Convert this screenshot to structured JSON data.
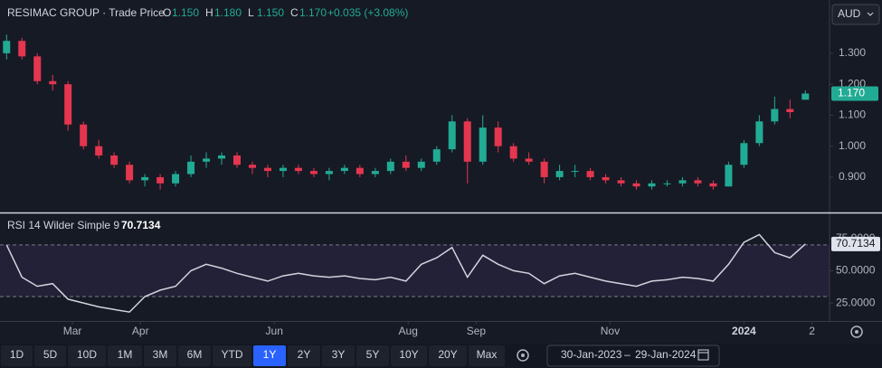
{
  "header": {
    "name": "RESIMAC GROUP · Trade Price",
    "ohlc": [
      {
        "key": "O",
        "value": "1.150"
      },
      {
        "key": "H",
        "value": "1.180"
      },
      {
        "key": "L",
        "value": "1.150"
      },
      {
        "key": "C",
        "value": "1.170"
      }
    ],
    "change": "+0.035 (+3.08%)",
    "currency": "AUD"
  },
  "chart_data": [
    {
      "type": "candlestick",
      "up_color": "#22ab94",
      "down_color": "#e5364f",
      "x": [
        0,
        7,
        14,
        21,
        28,
        35,
        42,
        49,
        56,
        63,
        70,
        77,
        84,
        91,
        98,
        105,
        112,
        119,
        126,
        133,
        140,
        147,
        154,
        161,
        168,
        175,
        182,
        189,
        196,
        203,
        210,
        217,
        224,
        231,
        238,
        245,
        252,
        259,
        266,
        273,
        280,
        287,
        294,
        301,
        308,
        315,
        322,
        329,
        336,
        343,
        350,
        357,
        364
      ],
      "ohlc": [
        [
          1.3,
          1.36,
          1.28,
          1.34
        ],
        [
          1.34,
          1.35,
          1.28,
          1.29
        ],
        [
          1.29,
          1.3,
          1.2,
          1.21
        ],
        [
          1.21,
          1.23,
          1.18,
          1.2
        ],
        [
          1.2,
          1.21,
          1.05,
          1.07
        ],
        [
          1.07,
          1.08,
          0.99,
          1.0
        ],
        [
          1.0,
          1.02,
          0.96,
          0.97
        ],
        [
          0.97,
          0.98,
          0.93,
          0.94
        ],
        [
          0.94,
          0.95,
          0.88,
          0.89
        ],
        [
          0.89,
          0.91,
          0.87,
          0.9
        ],
        [
          0.9,
          0.91,
          0.86,
          0.88
        ],
        [
          0.88,
          0.92,
          0.87,
          0.91
        ],
        [
          0.91,
          0.97,
          0.9,
          0.95
        ],
        [
          0.95,
          0.98,
          0.93,
          0.96
        ],
        [
          0.96,
          0.98,
          0.94,
          0.97
        ],
        [
          0.97,
          0.98,
          0.93,
          0.94
        ],
        [
          0.94,
          0.95,
          0.91,
          0.93
        ],
        [
          0.93,
          0.94,
          0.9,
          0.92
        ],
        [
          0.92,
          0.94,
          0.9,
          0.93
        ],
        [
          0.93,
          0.94,
          0.91,
          0.92
        ],
        [
          0.92,
          0.93,
          0.9,
          0.91
        ],
        [
          0.91,
          0.93,
          0.89,
          0.92
        ],
        [
          0.92,
          0.94,
          0.91,
          0.93
        ],
        [
          0.93,
          0.94,
          0.9,
          0.91
        ],
        [
          0.91,
          0.93,
          0.9,
          0.92
        ],
        [
          0.92,
          0.96,
          0.91,
          0.95
        ],
        [
          0.95,
          0.97,
          0.92,
          0.93
        ],
        [
          0.93,
          0.96,
          0.92,
          0.95
        ],
        [
          0.95,
          1.0,
          0.94,
          0.99
        ],
        [
          0.99,
          1.1,
          0.98,
          1.08
        ],
        [
          1.08,
          1.09,
          0.88,
          0.95
        ],
        [
          0.95,
          1.1,
          0.94,
          1.06
        ],
        [
          1.06,
          1.08,
          0.98,
          1.0
        ],
        [
          1.0,
          1.01,
          0.95,
          0.96
        ],
        [
          0.96,
          0.98,
          0.94,
          0.95
        ],
        [
          0.95,
          0.96,
          0.88,
          0.9
        ],
        [
          0.9,
          0.94,
          0.89,
          0.92
        ],
        [
          0.92,
          0.94,
          0.9,
          0.92
        ],
        [
          0.92,
          0.93,
          0.89,
          0.9
        ],
        [
          0.9,
          0.91,
          0.88,
          0.89
        ],
        [
          0.89,
          0.9,
          0.87,
          0.88
        ],
        [
          0.88,
          0.89,
          0.86,
          0.87
        ],
        [
          0.87,
          0.89,
          0.86,
          0.88
        ],
        [
          0.88,
          0.89,
          0.87,
          0.88
        ],
        [
          0.88,
          0.9,
          0.87,
          0.89
        ],
        [
          0.89,
          0.9,
          0.87,
          0.88
        ],
        [
          0.88,
          0.89,
          0.86,
          0.87
        ],
        [
          0.87,
          0.95,
          0.87,
          0.94
        ],
        [
          0.94,
          1.02,
          0.93,
          1.01
        ],
        [
          1.01,
          1.1,
          1.0,
          1.08
        ],
        [
          1.08,
          1.16,
          1.07,
          1.12
        ],
        [
          1.12,
          1.15,
          1.09,
          1.11
        ],
        [
          1.15,
          1.18,
          1.15,
          1.17
        ]
      ],
      "last_label": "1.170",
      "xlim": [
        -3,
        375
      ],
      "xticks": [
        {
          "value": 30,
          "label": "Mar"
        },
        {
          "value": 61,
          "label": "Apr"
        },
        {
          "value": 122,
          "label": "Jun"
        },
        {
          "value": 183,
          "label": "Aug"
        },
        {
          "value": 214,
          "label": "Sep"
        },
        {
          "value": 275,
          "label": "Nov"
        },
        {
          "value": 336,
          "label": "2024"
        },
        {
          "value": 367,
          "label": "2"
        }
      ],
      "ylim": [
        0.786,
        1.472
      ],
      "yticks": [
        {
          "value": 0.9,
          "label": "0.900"
        },
        {
          "value": 1.0,
          "label": "1.000"
        },
        {
          "value": 1.1,
          "label": "1.100"
        },
        {
          "value": 1.2,
          "label": "1.200"
        },
        {
          "value": 1.3,
          "label": "1.300"
        }
      ]
    },
    {
      "type": "line",
      "title": "RSI 14 Wilder Simple 9",
      "color": "#d1d4dc",
      "band_color": "#7e57c2",
      "x": [
        0,
        7,
        14,
        21,
        28,
        35,
        42,
        49,
        56,
        63,
        70,
        77,
        84,
        91,
        98,
        105,
        112,
        119,
        126,
        133,
        140,
        147,
        154,
        161,
        168,
        175,
        182,
        189,
        196,
        203,
        210,
        217,
        224,
        231,
        238,
        245,
        252,
        259,
        266,
        273,
        280,
        287,
        294,
        301,
        308,
        315,
        322,
        329,
        336,
        343,
        350,
        357,
        364
      ],
      "values": [
        70,
        45,
        38,
        40,
        28,
        25,
        22,
        20,
        18,
        30,
        35,
        38,
        50,
        55,
        52,
        48,
        45,
        42,
        46,
        48,
        46,
        45,
        46,
        44,
        43,
        45,
        42,
        55,
        60,
        68,
        45,
        62,
        55,
        50,
        48,
        40,
        46,
        48,
        45,
        42,
        40,
        38,
        42,
        43,
        45,
        44,
        42,
        55,
        72,
        78,
        64,
        60,
        70.7134
      ],
      "current_label": "70.7134",
      "bands": [
        30,
        70
      ],
      "ylim": [
        11.1,
        94.4
      ],
      "yticks": [
        {
          "value": 25,
          "label": "25.0000"
        },
        {
          "value": 50,
          "label": "50.0000"
        },
        {
          "value": 75,
          "label": "75.0000"
        }
      ]
    }
  ],
  "toolbar": {
    "ranges": [
      "1D",
      "5D",
      "10D",
      "1M",
      "3M",
      "6M",
      "YTD",
      "1Y",
      "2Y",
      "3Y",
      "5Y",
      "10Y",
      "20Y",
      "Max"
    ],
    "active": "1Y",
    "date_from": "30-Jan-2023",
    "date_separator": "–",
    "date_to": "29-Jan-2024"
  }
}
